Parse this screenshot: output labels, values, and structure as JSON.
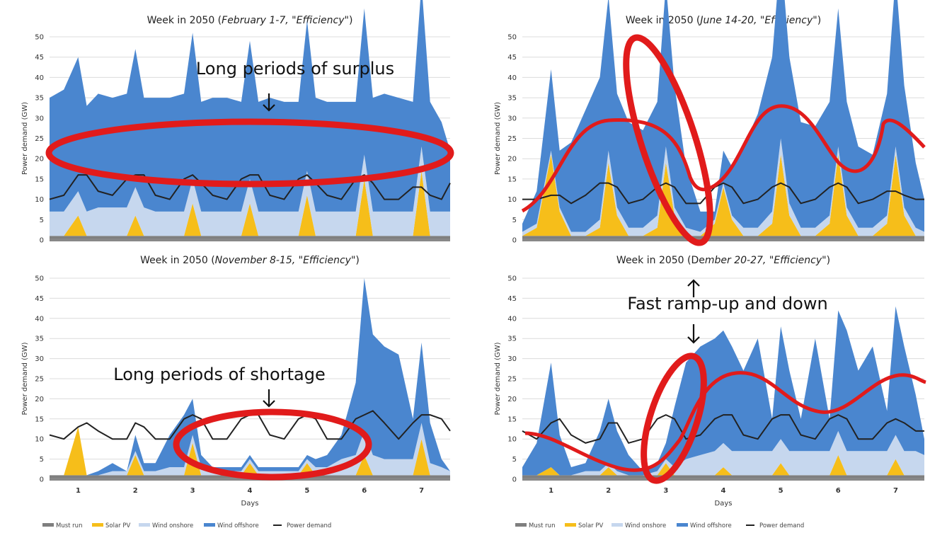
{
  "colors": {
    "must_run": "#7f7f7f",
    "solar_pv": "#f6be1a",
    "wind_onshore": "#c6d7ee",
    "wind_offshore": "#4a86cf",
    "power_demand": "#222222",
    "annotation": "#e11b1b"
  },
  "legend": [
    {
      "key": "must_run",
      "label": "Must run"
    },
    {
      "key": "solar_pv",
      "label": "Solar PV"
    },
    {
      "key": "wind_onshore",
      "label": "Wind onshore"
    },
    {
      "key": "wind_offshore",
      "label": "Wind offshore"
    },
    {
      "key": "power_demand",
      "label": "Power demand"
    }
  ],
  "annotations": {
    "surplus": "Long periods of surplus",
    "ramp": "Fast ramp-up and down",
    "shortage": "Long periods of shortage"
  },
  "chart_data": [
    {
      "type": "area",
      "title_prefix": "Week in 2050 (",
      "title_em": "February 1-7, \"Efficiency\"",
      "title_suffix": ")",
      "ylabel": "Power demand (GW)",
      "xlabel": "",
      "ylim": [
        0,
        50
      ],
      "yticks": [
        0,
        5,
        10,
        15,
        20,
        25,
        30,
        35,
        40,
        45,
        50
      ],
      "days": [],
      "grid": true,
      "x": [
        0.5,
        0.75,
        1.0,
        1.15,
        1.35,
        1.6,
        1.85,
        2.0,
        2.15,
        2.35,
        2.6,
        2.85,
        3.0,
        3.15,
        3.35,
        3.6,
        3.85,
        4.0,
        4.15,
        4.35,
        4.6,
        4.85,
        5.0,
        5.15,
        5.35,
        5.6,
        5.85,
        6.0,
        6.15,
        6.35,
        6.6,
        6.85,
        7.0,
        7.15,
        7.35,
        7.5
      ],
      "series": [
        {
          "key": "must_run",
          "values": [
            1,
            1,
            1,
            1,
            1,
            1,
            1,
            1,
            1,
            1,
            1,
            1,
            1,
            1,
            1,
            1,
            1,
            1,
            1,
            1,
            1,
            1,
            1,
            1,
            1,
            1,
            1,
            1,
            1,
            1,
            1,
            1,
            1,
            1,
            1,
            1
          ]
        },
        {
          "key": "solar_pv",
          "values": [
            0,
            0,
            5,
            0,
            0,
            0,
            0,
            5,
            0,
            0,
            0,
            0,
            8,
            0,
            0,
            0,
            0,
            8,
            0,
            0,
            0,
            0,
            10,
            0,
            0,
            0,
            0,
            14,
            0,
            0,
            0,
            0,
            16,
            0,
            0,
            0
          ]
        },
        {
          "key": "wind_onshore",
          "values": [
            6,
            6,
            6,
            6,
            7,
            7,
            7,
            7,
            7,
            6,
            6,
            6,
            6,
            6,
            6,
            6,
            6,
            6,
            6,
            6,
            6,
            6,
            6,
            6,
            6,
            6,
            6,
            6,
            6,
            6,
            6,
            6,
            6,
            6,
            6,
            6
          ]
        },
        {
          "key": "wind_offshore",
          "values": [
            28,
            30,
            33,
            26,
            28,
            27,
            28,
            34,
            27,
            28,
            28,
            29,
            36,
            27,
            28,
            28,
            27,
            34,
            27,
            28,
            27,
            27,
            37,
            28,
            27,
            27,
            27,
            36,
            28,
            29,
            28,
            27,
            40,
            27,
            22,
            15
          ]
        }
      ],
      "demand": [
        10,
        11,
        16,
        16,
        12,
        11,
        15,
        16,
        16,
        11,
        10,
        15,
        16,
        14,
        11,
        10,
        15,
        16,
        16,
        11,
        10,
        15,
        16,
        14,
        11,
        10,
        15,
        16,
        14,
        10,
        10,
        13,
        13,
        11,
        10,
        14
      ]
    },
    {
      "type": "area",
      "title_prefix": "Week in 2050 (",
      "title_em": "June 14-20, \"Efficiency\"",
      "title_suffix": ")",
      "ylabel": "Power demand (GW)",
      "xlabel": "",
      "ylim": [
        0,
        50
      ],
      "yticks": [
        0,
        5,
        10,
        15,
        20,
        25,
        30,
        35,
        40,
        45,
        50
      ],
      "days": [],
      "grid": true,
      "x": [
        0.5,
        0.75,
        1.0,
        1.15,
        1.35,
        1.6,
        1.85,
        2.0,
        2.15,
        2.35,
        2.6,
        2.85,
        3.0,
        3.15,
        3.35,
        3.6,
        3.85,
        4.0,
        4.15,
        4.35,
        4.6,
        4.85,
        5.0,
        5.15,
        5.35,
        5.6,
        5.85,
        6.0,
        6.15,
        6.35,
        6.6,
        6.85,
        7.0,
        7.15,
        7.35,
        7.5
      ],
      "series": [
        {
          "key": "must_run",
          "values": [
            1,
            1,
            1,
            1,
            1,
            1,
            1,
            1,
            1,
            1,
            1,
            1,
            1,
            1,
            1,
            1,
            1,
            1,
            1,
            1,
            1,
            1,
            1,
            1,
            1,
            1,
            1,
            1,
            1,
            1,
            1,
            1,
            1,
            1,
            1,
            1
          ]
        },
        {
          "key": "solar_pv",
          "values": [
            0,
            2,
            20,
            6,
            0,
            0,
            2,
            18,
            5,
            0,
            0,
            2,
            18,
            5,
            0,
            0,
            3,
            12,
            4,
            0,
            0,
            3,
            20,
            5,
            0,
            0,
            3,
            20,
            5,
            0,
            0,
            3,
            20,
            5,
            0,
            0
          ]
        },
        {
          "key": "wind_onshore",
          "values": [
            1,
            1,
            1,
            1,
            1,
            1,
            2,
            3,
            2,
            2,
            2,
            3,
            4,
            2,
            2,
            1,
            1,
            1,
            1,
            2,
            2,
            3,
            4,
            3,
            2,
            2,
            2,
            2,
            2,
            2,
            2,
            2,
            2,
            2,
            2,
            1
          ]
        },
        {
          "key": "wind_offshore",
          "values": [
            2,
            8,
            20,
            14,
            22,
            30,
            35,
            38,
            28,
            26,
            24,
            28,
            40,
            30,
            15,
            5,
            2,
            8,
            12,
            20,
            28,
            38,
            46,
            36,
            26,
            25,
            28,
            34,
            26,
            20,
            18,
            30,
            42,
            30,
            16,
            8
          ]
        }
      ],
      "demand": [
        10,
        10,
        11,
        11,
        9,
        11,
        14,
        14,
        13,
        9,
        10,
        13,
        14,
        13,
        9,
        9,
        13,
        14,
        13,
        9,
        10,
        13,
        14,
        13,
        9,
        10,
        13,
        14,
        13,
        9,
        10,
        12,
        12,
        11,
        10,
        10
      ]
    },
    {
      "type": "area",
      "title_prefix": "Week in 2050 (",
      "title_em": "November 8-15, \"Efficiency\"",
      "title_suffix": ")",
      "ylabel": "Power demand (GW)",
      "xlabel": "Days",
      "ylim": [
        0,
        50
      ],
      "yticks": [
        0,
        5,
        10,
        15,
        20,
        25,
        30,
        35,
        40,
        45,
        50
      ],
      "days": [
        "1",
        "2",
        "3",
        "4",
        "5",
        "6",
        "7"
      ],
      "grid": true,
      "x": [
        0.5,
        0.75,
        1.0,
        1.15,
        1.35,
        1.6,
        1.85,
        2.0,
        2.15,
        2.35,
        2.6,
        2.85,
        3.0,
        3.15,
        3.35,
        3.6,
        3.85,
        4.0,
        4.15,
        4.35,
        4.6,
        4.85,
        5.0,
        5.15,
        5.35,
        5.6,
        5.85,
        6.0,
        6.15,
        6.35,
        6.6,
        6.85,
        7.0,
        7.15,
        7.35,
        7.5
      ],
      "series": [
        {
          "key": "must_run",
          "values": [
            1,
            1,
            1,
            1,
            1,
            1,
            1,
            1,
            1,
            1,
            1,
            1,
            1,
            1,
            1,
            1,
            1,
            1,
            1,
            1,
            1,
            1,
            1,
            1,
            1,
            1,
            1,
            1,
            1,
            1,
            1,
            1,
            1,
            1,
            1,
            1
          ]
        },
        {
          "key": "solar_pv",
          "values": [
            0,
            0,
            12,
            0,
            0,
            0,
            0,
            5,
            0,
            0,
            0,
            0,
            8,
            0,
            0,
            0,
            0,
            3,
            0,
            0,
            0,
            0,
            3,
            0,
            0,
            0,
            0,
            5,
            0,
            0,
            0,
            0,
            9,
            0,
            0,
            0
          ]
        },
        {
          "key": "wind_onshore",
          "values": [
            0,
            0,
            0,
            0,
            0,
            1,
            1,
            1,
            1,
            1,
            2,
            2,
            2,
            2,
            1,
            1,
            1,
            1,
            1,
            1,
            1,
            1,
            1,
            2,
            2,
            4,
            5,
            6,
            5,
            4,
            4,
            4,
            4,
            3,
            2,
            1
          ]
        },
        {
          "key": "wind_offshore",
          "values": [
            0,
            0,
            0,
            0,
            1,
            2,
            0,
            4,
            2,
            2,
            8,
            13,
            9,
            3,
            1,
            1,
            1,
            1,
            1,
            1,
            1,
            1,
            1,
            2,
            3,
            6,
            18,
            38,
            30,
            28,
            26,
            10,
            20,
            10,
            2,
            0
          ]
        }
      ],
      "demand": [
        11,
        10,
        13,
        14,
        12,
        10,
        10,
        14,
        13,
        10,
        10,
        15,
        16,
        15,
        10,
        10,
        15,
        16,
        16,
        11,
        10,
        15,
        16,
        15,
        10,
        10,
        15,
        16,
        17,
        14,
        10,
        14,
        16,
        16,
        15,
        12
      ]
    },
    {
      "type": "area",
      "title_prefix": "Week in 2050 (De",
      "title_em": "mber 20-27, \"Efficiency\"",
      "title_suffix": ")",
      "ylabel": "Power demand (GW)",
      "xlabel": "Days",
      "ylim": [
        0,
        50
      ],
      "yticks": [
        0,
        5,
        10,
        15,
        20,
        25,
        30,
        35,
        40,
        45,
        50
      ],
      "days": [
        "1",
        "2",
        "3",
        "4",
        "5",
        "6",
        "7"
      ],
      "grid": true,
      "x": [
        0.5,
        0.75,
        1.0,
        1.15,
        1.35,
        1.6,
        1.85,
        2.0,
        2.15,
        2.35,
        2.6,
        2.85,
        3.0,
        3.15,
        3.35,
        3.6,
        3.85,
        4.0,
        4.15,
        4.35,
        4.6,
        4.85,
        5.0,
        5.15,
        5.35,
        5.6,
        5.85,
        6.0,
        6.15,
        6.35,
        6.6,
        6.85,
        7.0,
        7.15,
        7.35,
        7.5
      ],
      "series": [
        {
          "key": "must_run",
          "values": [
            1,
            1,
            1,
            1,
            1,
            1,
            1,
            1,
            1,
            1,
            1,
            1,
            1,
            1,
            1,
            1,
            1,
            1,
            1,
            1,
            1,
            1,
            1,
            1,
            1,
            1,
            1,
            1,
            1,
            1,
            1,
            1,
            1,
            1,
            1,
            1
          ]
        },
        {
          "key": "solar_pv",
          "values": [
            0,
            0,
            2,
            0,
            0,
            0,
            0,
            2,
            0,
            0,
            0,
            0,
            3,
            0,
            0,
            0,
            0,
            2,
            0,
            0,
            0,
            0,
            3,
            0,
            0,
            0,
            0,
            5,
            0,
            0,
            0,
            0,
            4,
            0,
            0,
            0
          ]
        },
        {
          "key": "wind_onshore",
          "values": [
            0,
            0,
            0,
            0,
            0,
            1,
            1,
            1,
            1,
            0,
            0,
            1,
            1,
            2,
            4,
            5,
            6,
            6,
            6,
            6,
            6,
            6,
            6,
            6,
            6,
            6,
            6,
            6,
            6,
            6,
            6,
            6,
            6,
            6,
            6,
            5
          ]
        },
        {
          "key": "wind_offshore",
          "values": [
            2,
            8,
            26,
            10,
            2,
            2,
            10,
            16,
            10,
            5,
            1,
            2,
            4,
            15,
            24,
            27,
            28,
            28,
            26,
            20,
            28,
            8,
            28,
            20,
            8,
            28,
            8,
            30,
            30,
            20,
            26,
            10,
            32,
            26,
            14,
            4
          ]
        }
      ],
      "demand": [
        12,
        10,
        14,
        15,
        11,
        9,
        10,
        14,
        14,
        9,
        10,
        15,
        16,
        15,
        10,
        11,
        15,
        16,
        16,
        11,
        10,
        15,
        16,
        16,
        11,
        10,
        15,
        16,
        15,
        10,
        10,
        14,
        15,
        14,
        12,
        12
      ]
    }
  ]
}
